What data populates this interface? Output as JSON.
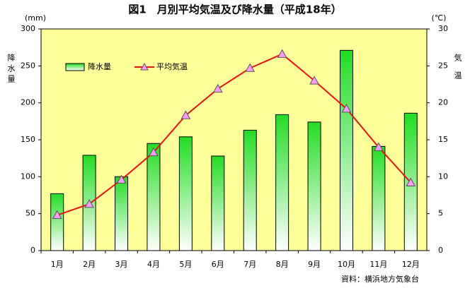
{
  "chart_data": {
    "type": "combo",
    "title": "図1　月別平均気温及び降水量（平成18年）",
    "y_unit": "(mm)",
    "y2_unit": "(℃)",
    "y_label": "降水量",
    "y2_label": "気温",
    "source": "資料：横浜地方気象台",
    "categories": [
      "1月",
      "2月",
      "3月",
      "4月",
      "5月",
      "6月",
      "7月",
      "8月",
      "9月",
      "10月",
      "11月",
      "12月"
    ],
    "series": [
      {
        "name": "降水量",
        "type": "bar",
        "color": "#22dd22",
        "values": [
          77,
          129,
          100,
          145,
          154,
          128,
          163,
          184,
          174,
          271,
          141,
          186
        ]
      },
      {
        "name": "平均気温",
        "type": "line",
        "axis": "y2",
        "color": "#ee1111",
        "marker_color": "#ff99ff",
        "values": [
          4.8,
          6.3,
          9.6,
          13.3,
          18.3,
          21.9,
          24.7,
          26.6,
          23.0,
          19.2,
          14.0,
          9.2
        ]
      }
    ],
    "ylim": [
      0,
      300
    ],
    "yticks": [
      0,
      50,
      100,
      150,
      200,
      250,
      300
    ],
    "y2lim": [
      0,
      30
    ],
    "y2ticks": [
      0,
      5,
      10,
      15,
      20,
      25,
      30
    ],
    "plot_background": "#ffff99"
  }
}
